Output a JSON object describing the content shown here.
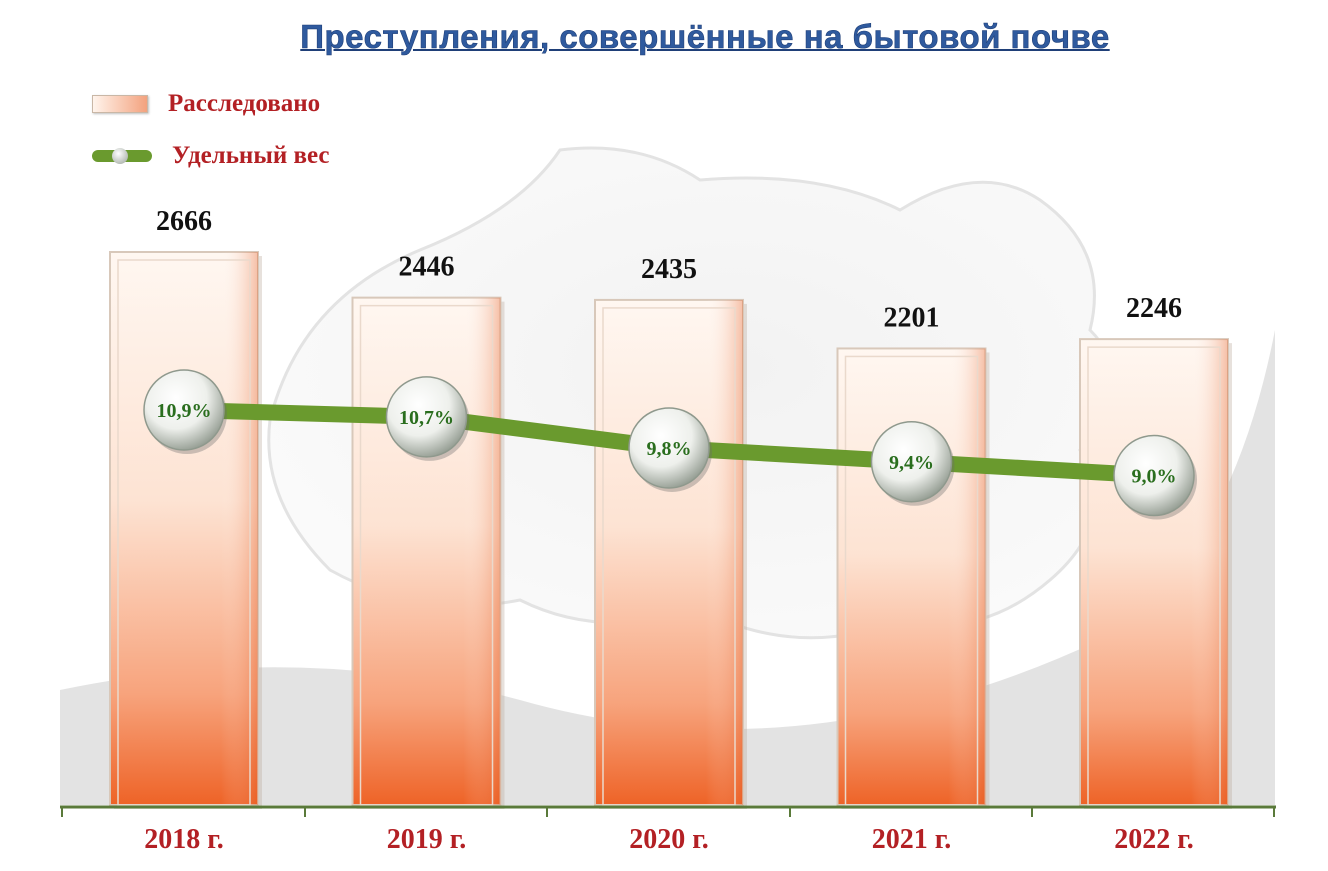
{
  "title": "Преступления, совершённые на бытовой почве",
  "legend": {
    "bar_label": "Расследовано",
    "line_label": "Удельный вес"
  },
  "colors": {
    "title": "#2f5a9e",
    "legend_text": "#b32024",
    "year_labels": "#b32024",
    "bar_top": "#fff6ef",
    "bar_bottom": "#ef6a2e",
    "line": "#6a9a2e",
    "marker_text": "#2a6e1e",
    "axis": "#5a7a3a"
  },
  "chart_data": {
    "type": "bar",
    "categories": [
      "2018 г.",
      "2019 г.",
      "2020 г.",
      "2021 г.",
      "2022 г."
    ],
    "series": [
      {
        "name": "Расследовано",
        "type": "bar",
        "values": [
          2666,
          2446,
          2435,
          2201,
          2246
        ],
        "labels": [
          "2666",
          "2446",
          "2435",
          "2201",
          "2246"
        ]
      },
      {
        "name": "Удельный вес",
        "type": "line",
        "values": [
          10.9,
          10.7,
          9.8,
          9.4,
          9.0
        ],
        "labels": [
          "10,9%",
          "10,7%",
          "9,8%",
          "9,4%",
          "9,0%"
        ]
      }
    ],
    "title": "Преступления, совершённые на бытовой почве",
    "legend_position": "top-left",
    "grid": false
  }
}
